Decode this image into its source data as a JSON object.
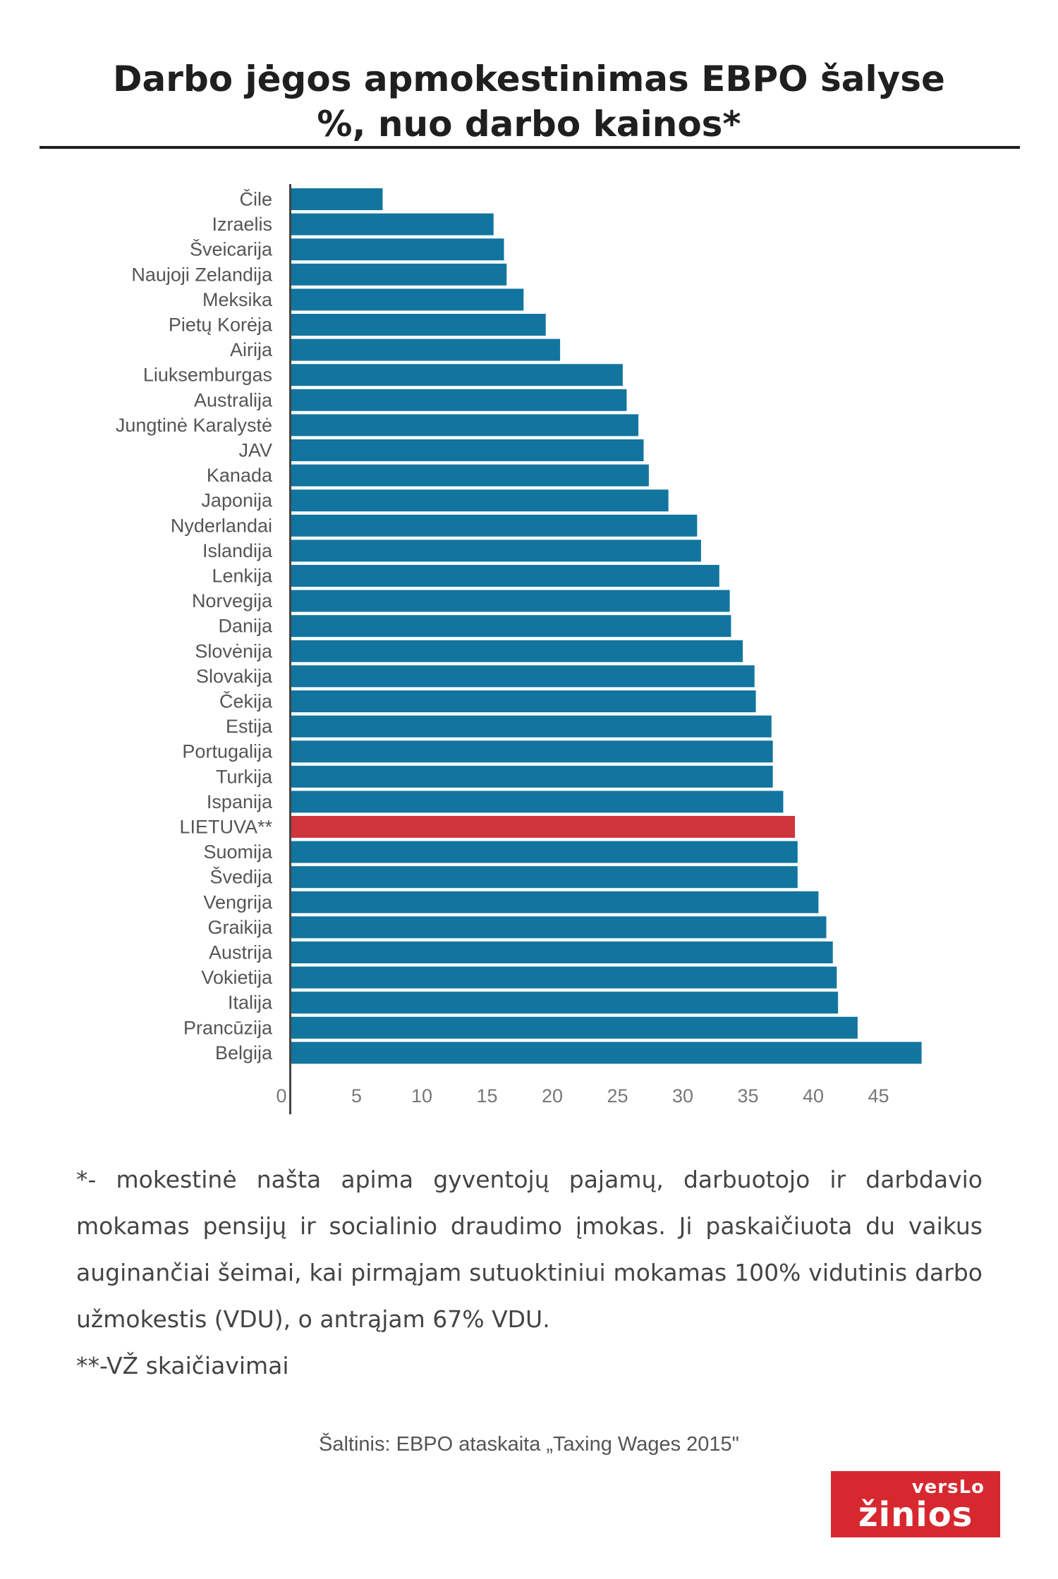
{
  "title": {
    "line1": "Darbo jėgos apmokestinimas EBPO šalyse",
    "line2": "%, nuo darbo kainos*"
  },
  "colors": {
    "bar": "#12759f",
    "highlight": "#d0343c",
    "axis": "#444444"
  },
  "chart_data": {
    "type": "bar",
    "orientation": "horizontal",
    "title": "Darbo jėgos apmokestinimas EBPO šalyse %, nuo darbo kainos*",
    "xlabel": "",
    "ylabel": "",
    "xlim": [
      0,
      50
    ],
    "ticks": [
      0,
      5,
      10,
      15,
      20,
      25,
      30,
      35,
      40,
      45
    ],
    "highlight": "LIETUVA**",
    "categories": [
      "Čile",
      "Izraelis",
      "Šveicarija",
      "Naujoji Zelandija",
      "Meksika",
      "Pietų Korėja",
      "Airija",
      "Liuksemburgas",
      "Australija",
      "Jungtinė Karalystė",
      "JAV",
      "Kanada",
      "Japonija",
      "Nyderlandai",
      "Islandija",
      "Lenkija",
      "Norvegija",
      "Danija",
      "Slovėnija",
      "Slovakija",
      "Čekija",
      "Estija",
      "Portugalija",
      "Turkija",
      "Ispanija",
      "LIETUVA**",
      "Suomija",
      "Švedija",
      "Vengrija",
      "Graikija",
      "Austrija",
      "Vokietija",
      "Italija",
      "Prancūzija",
      "Belgija"
    ],
    "values": [
      7,
      15.5,
      16.3,
      16.5,
      17.8,
      19.5,
      20.6,
      25.4,
      25.7,
      26.6,
      27.0,
      27.4,
      28.9,
      31.1,
      31.4,
      32.8,
      33.6,
      33.7,
      34.6,
      35.5,
      35.6,
      36.8,
      36.9,
      36.9,
      37.7,
      38.6,
      38.8,
      38.8,
      40.4,
      41.0,
      41.5,
      41.8,
      41.9,
      43.4,
      48.3
    ]
  },
  "notes": {
    "note1": "*- mokestinė našta apima gyventojų pajamų, darbuotojo ir darbdavio mokamas pensijų ir socialinio draudimo įmokas. Ji paskaičiuota du vaikus auginančiai šeimai, kai pirmąjam sutuoktiniui mokamas 100% vidutinis darbo užmokestis (VDU), o antrąjam 67% VDU.",
    "note2": "**-VŽ skaičiavimai"
  },
  "source": "Šaltinis: EBPO ataskaita „Taxing Wages 2015\"",
  "logo": {
    "top": "versLo",
    "bottom": "žinios"
  }
}
